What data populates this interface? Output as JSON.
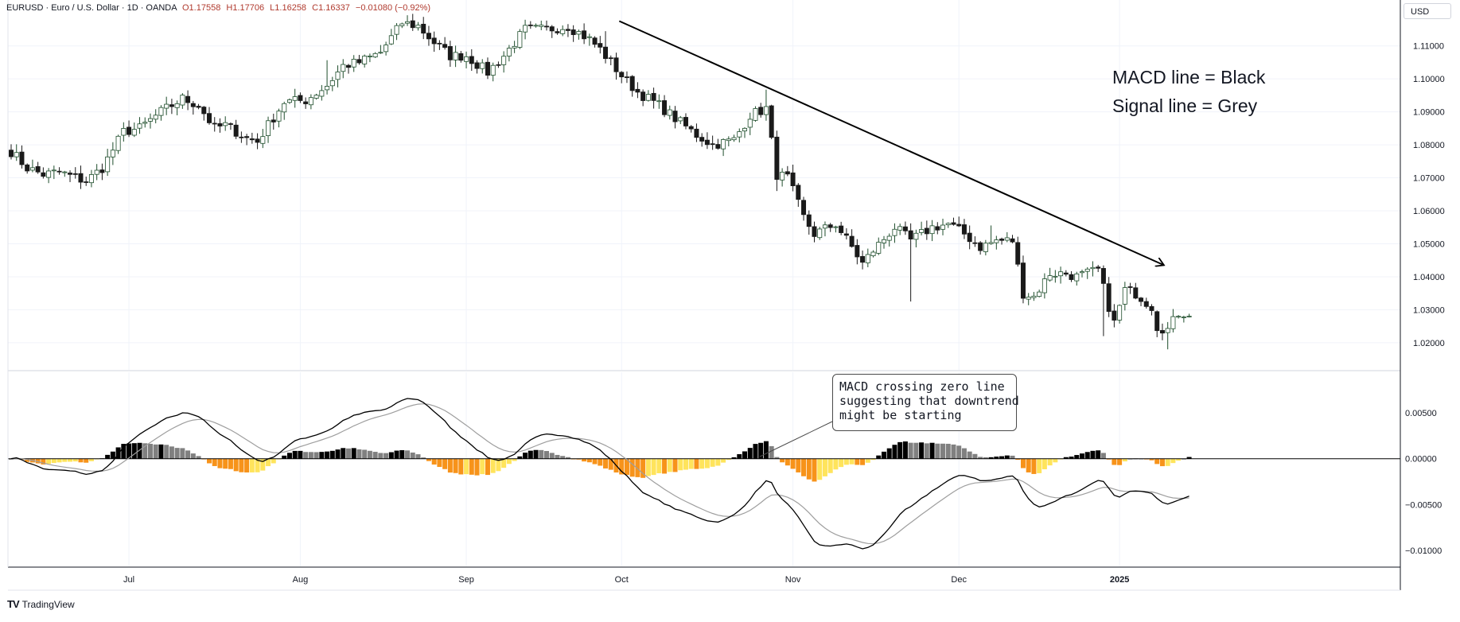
{
  "header": {
    "symbol": "EURUSD · Euro / U.S. Dollar · 1D · OANDA",
    "open": "O1.17558",
    "high": "H1.17706",
    "low": "L1.16258",
    "close": "C1.16337",
    "change": "−0.01080 (−0.92%)"
  },
  "currency_badge": "USD",
  "annotations": {
    "legend_line1": "MACD line =  Black",
    "legend_line2": "Signal line = Grey",
    "callout_line1": "MACD crossing zero line",
    "callout_line2": "suggesting that downtrend",
    "callout_line3": "might be starting"
  },
  "branding": "TradingView",
  "colors": {
    "bull_candle_fill": "#ffffff",
    "bull_candle_border": "#1e4d2b",
    "bear_candle": "#1a1a1a",
    "macd_line": "#000000",
    "signal_line": "#9e9e9e",
    "hist_pos_rising": "#000000",
    "hist_pos_falling": "#808080",
    "hist_neg_falling": "#f7931a",
    "hist_neg_rising": "#ffe45c",
    "trendline": "#000000",
    "grid": "#f0f3fa",
    "axis_text": "#131722"
  },
  "chart_data": [
    {
      "type": "candlestick",
      "title": "EURUSD · Euro / U.S. Dollar · 1D · OANDA",
      "y_axis_side": "right",
      "y_ticks": [
        "1.02000",
        "1.03000",
        "1.04000",
        "1.05000",
        "1.06000",
        "1.07000",
        "1.08000",
        "1.09000",
        "1.10000",
        "1.11000"
      ],
      "ylim": [
        1.0125,
        1.1215
      ],
      "x_ticks": [
        "Jul",
        "Aug",
        "Sep",
        "Oct",
        "Nov",
        "Dec",
        "2025"
      ],
      "close_anchors": [
        [
          0,
          1.078
        ],
        [
          3,
          1.073
        ],
        [
          6,
          1.071
        ],
        [
          9,
          1.0718
        ],
        [
          12,
          1.07
        ],
        [
          14,
          1.069
        ],
        [
          17,
          1.073
        ],
        [
          21,
          1.084
        ],
        [
          24,
          1.085
        ],
        [
          28,
          1.09
        ],
        [
          32,
          1.094
        ],
        [
          35,
          1.092
        ],
        [
          38,
          1.085
        ],
        [
          40,
          1.086
        ],
        [
          44,
          1.082
        ],
        [
          46,
          1.081
        ],
        [
          48,
          1.086
        ],
        [
          51,
          1.093
        ],
        [
          55,
          1.0935
        ],
        [
          59,
          1.098
        ],
        [
          62,
          1.104
        ],
        [
          65,
          1.105
        ],
        [
          69,
          1.108
        ],
        [
          73,
          1.117
        ],
        [
          76,
          1.116
        ],
        [
          79,
          1.111
        ],
        [
          82,
          1.107
        ],
        [
          85,
          1.107
        ],
        [
          89,
          1.102
        ],
        [
          92,
          1.107
        ],
        [
          96,
          1.115
        ],
        [
          100,
          1.115
        ],
        [
          104,
          1.116
        ],
        [
          108,
          1.112
        ],
        [
          110,
          1.109
        ],
        [
          114,
          1.101
        ],
        [
          117,
          1.096
        ],
        [
          121,
          1.092
        ],
        [
          124,
          1.088
        ],
        [
          128,
          1.083
        ],
        [
          131,
          1.08
        ],
        [
          135,
          1.0815
        ],
        [
          138,
          1.089
        ],
        [
          141,
          1.091
        ],
        [
          143,
          1.071
        ],
        [
          145,
          1.07
        ],
        [
          148,
          1.058
        ],
        [
          150,
          1.053
        ],
        [
          154,
          1.056
        ],
        [
          157,
          1.049
        ],
        [
          159,
          1.044
        ],
        [
          161,
          1.048
        ],
        [
          165,
          1.055
        ],
        [
          168,
          1.051
        ],
        [
          172,
          1.055
        ],
        [
          175,
          1.056
        ],
        [
          178,
          1.053
        ],
        [
          181,
          1.049
        ],
        [
          184,
          1.051
        ],
        [
          187,
          1.051
        ],
        [
          189,
          1.035
        ],
        [
          191,
          1.034
        ],
        [
          194,
          1.041
        ],
        [
          197,
          1.041
        ],
        [
          199,
          1.04
        ],
        [
          203,
          1.042
        ],
        [
          205,
          1.031
        ],
        [
          206,
          1.026
        ],
        [
          208,
          1.036
        ],
        [
          210,
          1.035
        ],
        [
          213,
          1.031
        ],
        [
          214,
          1.025
        ],
        [
          216,
          1.024
        ],
        [
          218,
          1.029
        ],
        [
          220,
          1.029
        ]
      ],
      "trendline": {
        "start": [
          110,
          1.118
        ],
        "end": [
          215,
          1.044
        ],
        "arrow": true
      }
    },
    {
      "type": "line",
      "title": "MACD",
      "series": [
        {
          "name": "MACD line",
          "values": []
        },
        {
          "name": "Signal line",
          "values": []
        }
      ],
      "y_ticks": [
        "0.00500",
        "0.00000",
        "−0.00500",
        "−0.01000"
      ],
      "ylim": [
        -0.01175,
        0.0091
      ],
      "x_ticks": [
        "Jul",
        "Aug",
        "Sep",
        "Oct",
        "Nov",
        "Dec",
        "2025"
      ],
      "zero_line": true
    }
  ]
}
